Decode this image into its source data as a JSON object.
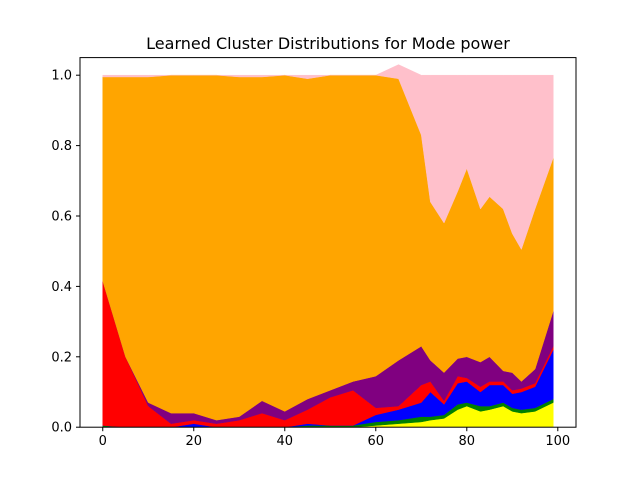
{
  "chart_data": {
    "type": "area",
    "stacked": true,
    "title": "Learned Cluster Distributions for Mode power",
    "xlabel": "",
    "ylabel": "",
    "xlim": [
      -5,
      104
    ],
    "ylim": [
      0,
      1.05
    ],
    "xticks": [
      0,
      20,
      40,
      60,
      80,
      100
    ],
    "yticks": [
      0.0,
      0.2,
      0.4,
      0.6,
      0.8,
      1.0
    ],
    "ytick_labels": [
      "0.0",
      "0.2",
      "0.4",
      "0.6",
      "0.8",
      "1.0"
    ],
    "grid": false,
    "legend": "none",
    "x": [
      0,
      5,
      10,
      15,
      20,
      25,
      30,
      35,
      40,
      45,
      50,
      55,
      60,
      65,
      70,
      72,
      75,
      78,
      80,
      83,
      85,
      88,
      90,
      92,
      95,
      99
    ],
    "series": [
      {
        "color": "#ffff00",
        "values": [
          0.0,
          0.0,
          0.0,
          0.0,
          0.0,
          0.0,
          0.0,
          0.0,
          0.0,
          0.0,
          0.0,
          0.0,
          0.005,
          0.01,
          0.015,
          0.02,
          0.025,
          0.05,
          0.06,
          0.045,
          0.05,
          0.06,
          0.045,
          0.04,
          0.045,
          0.07
        ]
      },
      {
        "color": "#008000",
        "values": [
          0.005,
          0.0,
          0.0,
          0.0,
          0.0,
          0.0,
          0.0,
          0.0,
          0.0,
          0.005,
          0.005,
          0.005,
          0.01,
          0.01,
          0.015,
          0.01,
          0.01,
          0.015,
          0.01,
          0.015,
          0.01,
          0.01,
          0.01,
          0.01,
          0.01,
          0.01
        ]
      },
      {
        "color": "#0000ff",
        "values": [
          0.0,
          0.0,
          0.0,
          0.0,
          0.01,
          0.0,
          0.0,
          0.0,
          0.0,
          0.005,
          0.0,
          0.0,
          0.02,
          0.03,
          0.04,
          0.07,
          0.03,
          0.06,
          0.06,
          0.04,
          0.06,
          0.05,
          0.04,
          0.05,
          0.06,
          0.14
        ]
      },
      {
        "color": "#ff0000",
        "values": [
          0.41,
          0.2,
          0.06,
          0.01,
          0.01,
          0.01,
          0.02,
          0.04,
          0.02,
          0.04,
          0.08,
          0.1,
          0.02,
          0.01,
          0.05,
          0.03,
          0.01,
          0.02,
          0.01,
          0.015,
          0.01,
          0.01,
          0.01,
          0.01,
          0.01,
          0.01
        ]
      },
      {
        "color": "#800080",
        "values": [
          0.0,
          0.0,
          0.01,
          0.03,
          0.02,
          0.01,
          0.01,
          0.035,
          0.025,
          0.03,
          0.02,
          0.025,
          0.09,
          0.13,
          0.11,
          0.06,
          0.08,
          0.05,
          0.06,
          0.07,
          0.07,
          0.03,
          0.05,
          0.02,
          0.04,
          0.1
        ]
      },
      {
        "color": "#ffa500",
        "values": [
          0.58,
          0.795,
          0.925,
          0.96,
          0.96,
          0.98,
          0.965,
          0.92,
          0.955,
          0.91,
          0.895,
          0.87,
          0.855,
          0.8,
          0.6,
          0.45,
          0.425,
          0.475,
          0.535,
          0.435,
          0.455,
          0.46,
          0.395,
          0.375,
          0.455,
          0.435
        ]
      },
      {
        "color": "#ffc0cb",
        "values": [
          0.005,
          0.005,
          0.005,
          0.0,
          0.0,
          0.0,
          0.005,
          0.005,
          0.0,
          0.01,
          0.0,
          0.0,
          0.0,
          0.04,
          0.17,
          0.36,
          0.42,
          0.33,
          0.265,
          0.38,
          0.345,
          0.38,
          0.45,
          0.495,
          0.38,
          0.235
        ]
      }
    ]
  }
}
